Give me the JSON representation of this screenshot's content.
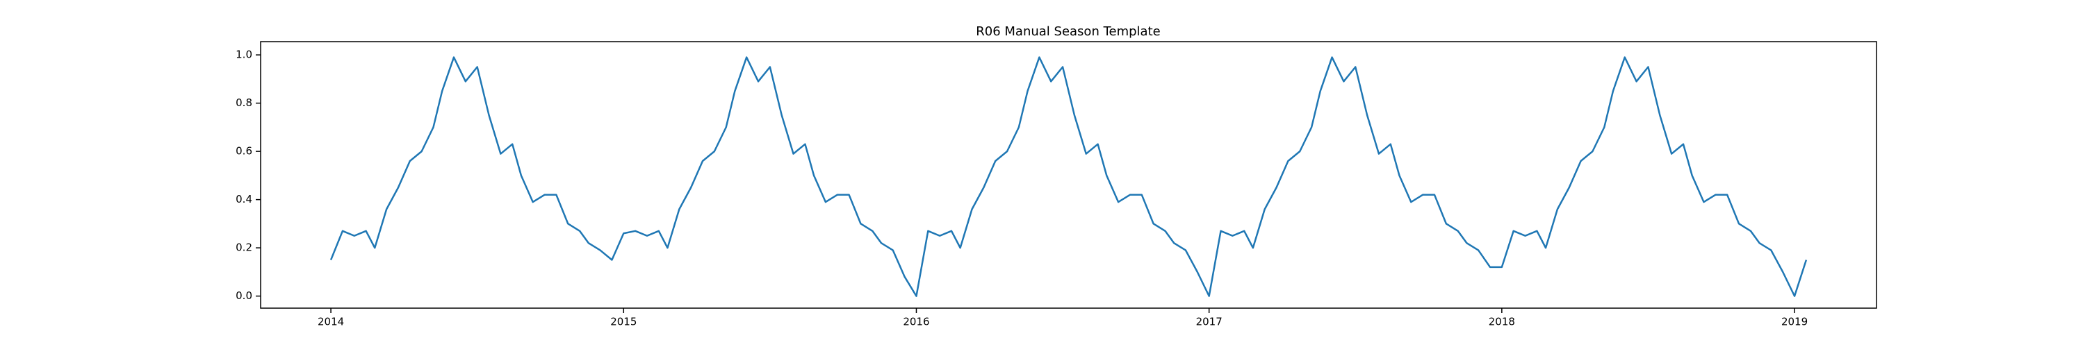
{
  "chart_data": {
    "type": "line",
    "title": "R06 Manual Season Template",
    "x": [
      2014.0,
      2014.04,
      2014.08,
      2014.12,
      2014.15,
      2014.19,
      2014.23,
      2014.27,
      2014.31,
      2014.35,
      2014.38,
      2014.42,
      2014.46,
      2014.5,
      2014.54,
      2014.58,
      2014.62,
      2014.65,
      2014.69,
      2014.73,
      2014.77,
      2014.81,
      2014.85,
      2014.88,
      2014.92,
      2014.96,
      2015.0,
      2015.04,
      2015.08,
      2015.12,
      2015.15,
      2015.19,
      2015.23,
      2015.27,
      2015.31,
      2015.35,
      2015.38,
      2015.42,
      2015.46,
      2015.5,
      2015.54,
      2015.58,
      2015.62,
      2015.65,
      2015.69,
      2015.73,
      2015.77,
      2015.81,
      2015.85,
      2015.88,
      2015.92,
      2015.96,
      2016.0,
      2016.04,
      2016.08,
      2016.12,
      2016.15,
      2016.19,
      2016.23,
      2016.27,
      2016.31,
      2016.35,
      2016.38,
      2016.42,
      2016.46,
      2016.5,
      2016.54,
      2016.58,
      2016.62,
      2016.65,
      2016.69,
      2016.73,
      2016.77,
      2016.81,
      2016.85,
      2016.88,
      2016.92,
      2016.96,
      2017.0,
      2017.04,
      2017.08,
      2017.12,
      2017.15,
      2017.19,
      2017.23,
      2017.27,
      2017.31,
      2017.35,
      2017.38,
      2017.42,
      2017.46,
      2017.5,
      2017.54,
      2017.58,
      2017.62,
      2017.65,
      2017.69,
      2017.73,
      2017.77,
      2017.81,
      2017.85,
      2017.88,
      2017.92,
      2017.96,
      2018.0,
      2018.04,
      2018.08,
      2018.12,
      2018.15,
      2018.19,
      2018.23,
      2018.27,
      2018.31,
      2018.35,
      2018.38,
      2018.42,
      2018.46,
      2018.5,
      2018.54,
      2018.58,
      2018.62,
      2018.65,
      2018.69,
      2018.73,
      2018.77,
      2018.81,
      2018.85,
      2018.88,
      2018.92,
      2018.96,
      2019.0,
      2019.04
    ],
    "series": [
      {
        "color": "#1f77b4",
        "values": [
          0.15,
          0.27,
          0.25,
          0.27,
          0.2,
          0.36,
          0.45,
          0.56,
          0.6,
          0.7,
          0.85,
          0.99,
          0.89,
          0.95,
          0.75,
          0.59,
          0.63,
          0.5,
          0.39,
          0.42,
          0.42,
          0.3,
          0.27,
          0.22,
          0.19,
          0.15,
          0.26,
          0.27,
          0.25,
          0.27,
          0.2,
          0.36,
          0.45,
          0.56,
          0.6,
          0.7,
          0.85,
          0.99,
          0.89,
          0.95,
          0.75,
          0.59,
          0.63,
          0.5,
          0.39,
          0.42,
          0.42,
          0.3,
          0.27,
          0.22,
          0.19,
          0.08,
          0.0,
          0.27,
          0.25,
          0.27,
          0.2,
          0.36,
          0.45,
          0.56,
          0.6,
          0.7,
          0.85,
          0.99,
          0.89,
          0.95,
          0.75,
          0.59,
          0.63,
          0.5,
          0.39,
          0.42,
          0.42,
          0.3,
          0.27,
          0.22,
          0.19,
          0.1,
          0.0,
          0.27,
          0.25,
          0.27,
          0.2,
          0.36,
          0.45,
          0.56,
          0.6,
          0.7,
          0.85,
          0.99,
          0.89,
          0.95,
          0.75,
          0.59,
          0.63,
          0.5,
          0.39,
          0.42,
          0.42,
          0.3,
          0.27,
          0.22,
          0.19,
          0.12,
          0.12,
          0.27,
          0.25,
          0.27,
          0.2,
          0.36,
          0.45,
          0.56,
          0.6,
          0.7,
          0.85,
          0.99,
          0.89,
          0.95,
          0.75,
          0.59,
          0.63,
          0.5,
          0.39,
          0.42,
          0.42,
          0.3,
          0.27,
          0.22,
          0.19,
          0.1,
          0.0,
          0.15
        ]
      }
    ],
    "xlim": [
      2013.76,
      2019.28
    ],
    "xticks": [
      2014,
      2015,
      2016,
      2017,
      2018,
      2019
    ],
    "ylim": [
      -0.05,
      1.055
    ],
    "yticks": [
      {
        "value": 0,
        "label": "0.0"
      },
      {
        "value": 0.2,
        "label": "0.2"
      },
      {
        "value": 0.4,
        "label": "0.4"
      },
      {
        "value": 0.6,
        "label": "0.6"
      },
      {
        "value": 0.8,
        "label": "0.8"
      },
      {
        "value": 1,
        "label": "1.0"
      }
    ]
  }
}
